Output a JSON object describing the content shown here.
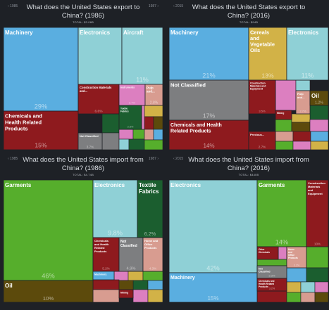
{
  "colors": {
    "background": "#1e2126",
    "blue": "#5aaee0",
    "light_blue": "#8fd0d6",
    "dark_red": "#8e1a1e",
    "green": "#56ae2c",
    "dark_green": "#1b5e2f",
    "olive": "#5c4a0c",
    "tan": "#d2b247",
    "grey": "#7d7e80",
    "pink": "#dc7fc0",
    "salmon": "#d89c90"
  },
  "chart_data": [
    {
      "type": "treemap",
      "id": "export-1986",
      "nav_left": "‹ 1985",
      "nav_right": "1987 ›",
      "title": "What does the United States export to China? (1986)",
      "total": "TOTAL: $3.06B",
      "cells": [
        {
          "name": "Machinery",
          "share": "29%",
          "color": "#5aaee0"
        },
        {
          "name": "Electronics",
          "share": "13%",
          "color": "#8fd0d6"
        },
        {
          "name": "Aircraft",
          "share": "11%",
          "color": "#8fd0d6"
        },
        {
          "name": "Chemicals and Health Related Products",
          "share": "15%",
          "color": "#8e1a1e"
        },
        {
          "name": "Construction Materials and...",
          "share": "6.6%",
          "color": "#8e1a1e"
        },
        {
          "name": "Instruments",
          "share": "3.7%",
          "color": "#dc7fc0"
        },
        {
          "name": "Pulp and...",
          "share": "2.8%",
          "color": "#d89c90"
        },
        {
          "name": "Textile Fabrics",
          "share": "2.8%",
          "color": "#1b5e2f"
        },
        {
          "name": "Not Classified",
          "share": "3.7%",
          "color": "#7d7e80"
        }
      ]
    },
    {
      "type": "treemap",
      "id": "export-2016",
      "nav_left": "‹ 2015",
      "nav_right": "",
      "title": "What does the United States export to China? (2016)",
      "total": "TOTAL: $94B",
      "cells": [
        {
          "name": "Machinery",
          "share": "21%",
          "color": "#5aaee0"
        },
        {
          "name": "Cereals and Vegetable Oils",
          "share": "13%",
          "color": "#d2b247"
        },
        {
          "name": "Electronics",
          "share": "11%",
          "color": "#8fd0d6"
        },
        {
          "name": "Not Classified",
          "share": "17%",
          "color": "#7d7e80"
        },
        {
          "name": "Chemicals and Health Related Products",
          "share": "14%",
          "color": "#8e1a1e"
        },
        {
          "name": "Construction Materials and Equipment",
          "share": "3.5%",
          "color": "#8e1a1e"
        },
        {
          "name": "Pulp and...",
          "share": "2.7%",
          "color": "#d89c90"
        },
        {
          "name": "Oil",
          "share": "1.2%",
          "color": "#5c4a0c"
        },
        {
          "name": "Precious...",
          "share": "2.7%",
          "color": "#8e1a1e"
        },
        {
          "name": "Mining",
          "share": "",
          "color": "#8e1a1e"
        }
      ]
    },
    {
      "type": "treemap",
      "id": "import-1986",
      "nav_left": "‹ 1985",
      "nav_right": "1987 ›",
      "title": "What does the United States import from China? (1986)",
      "total": "TOTAL: $4.74B",
      "cells": [
        {
          "name": "Garments",
          "share": "46%",
          "color": "#56ae2c"
        },
        {
          "name": "Electronics",
          "share": "9.8%",
          "color": "#8fd0d6"
        },
        {
          "name": "Textile Fabrics",
          "share": "6.2%",
          "color": "#1b5e2f"
        },
        {
          "name": "Chemicals and Health Related Products",
          "share": "5.2%",
          "color": "#8e1a1e"
        },
        {
          "name": "Not Classified",
          "share": "4.9%",
          "color": "#7d7e80"
        },
        {
          "name": "Home and Office Products",
          "share": "4.3%",
          "color": "#d89c90"
        },
        {
          "name": "Oil",
          "share": "10%",
          "color": "#5c4a0c"
        },
        {
          "name": "Machinery",
          "share": "",
          "color": "#5aaee0"
        },
        {
          "name": "Mining",
          "share": "",
          "color": "#8e1a1e"
        }
      ]
    },
    {
      "type": "treemap",
      "id": "import-2016",
      "nav_left": "‹ 2015",
      "nav_right": "",
      "title": "What does the United States import from China? (2016)",
      "total": "TOTAL: $440B",
      "cells": [
        {
          "name": "Electronics",
          "share": "42%",
          "color": "#8fd0d6"
        },
        {
          "name": "Garments",
          "share": "14%",
          "color": "#56ae2c"
        },
        {
          "name": "Construction Materials and Equipment",
          "share": "10%",
          "color": "#8e1a1e"
        },
        {
          "name": "Machinery",
          "share": "15%",
          "color": "#5aaee0"
        },
        {
          "name": "Other Chemicals",
          "share": "",
          "color": "#8e1a1e"
        },
        {
          "name": "Home and Office Products",
          "share": "3.2%",
          "color": "#d89c90"
        },
        {
          "name": "Not Classified",
          "share": "3.3%",
          "color": "#7d7e80"
        },
        {
          "name": "Chemicals and Health Related Products",
          "share": "3.2%",
          "color": "#8e1a1e"
        }
      ]
    }
  ]
}
